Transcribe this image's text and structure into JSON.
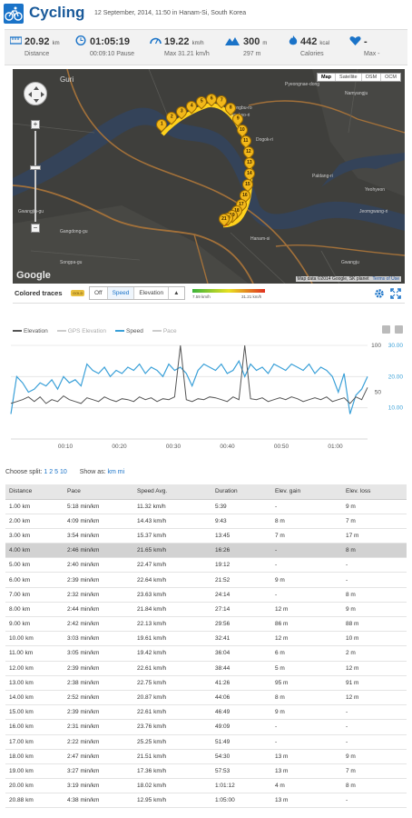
{
  "header": {
    "title": "Cycling",
    "subtitle": "12 September, 2014, 11:50 in Hanam-Si, South Korea"
  },
  "stats": {
    "distance": {
      "value": "20.92",
      "unit": "km",
      "label": "Distance"
    },
    "duration": {
      "value": "01:05:19",
      "label": "00:09:10 Pause"
    },
    "speed": {
      "value": "19.22",
      "unit": "km/h",
      "label": "Max 31.21 km/h"
    },
    "elevation": {
      "value": "300",
      "unit": "m",
      "label": "297 m"
    },
    "calories": {
      "value": "442",
      "unit": "kcal",
      "label": "Calories"
    },
    "heart": {
      "value": "-",
      "label": "Max -"
    }
  },
  "map": {
    "types": [
      "Map",
      "Satellite",
      "OSM",
      "OCM"
    ],
    "labels": [
      {
        "text": "Guri"
      },
      {
        "text": "Dongbu-ro"
      },
      {
        "text": "Deokso-ri"
      },
      {
        "text": "Pyeongnae-dong"
      },
      {
        "text": "Dogok-ri"
      },
      {
        "text": "Paldang-ri"
      },
      {
        "text": "Gwangjin-gu"
      },
      {
        "text": "Gangdong-gu"
      },
      {
        "text": "Namyangju"
      },
      {
        "text": "Songpa-gu"
      },
      {
        "text": "Hanam-si"
      },
      {
        "text": "Gwangju"
      },
      {
        "text": "Jeomgwang-ri"
      },
      {
        "text": "Yeohyeon"
      }
    ],
    "markers": [
      "1",
      "2",
      "3",
      "4",
      "5",
      "6",
      "7",
      "8",
      "9",
      "10",
      "11",
      "12",
      "13",
      "14",
      "15",
      "16",
      "17",
      "18",
      "19",
      "20",
      "21"
    ],
    "logo": "Google",
    "attribution": "Map data ©2014 Google, SK planet",
    "terms": "Terms of Use"
  },
  "mapcontrols": {
    "label": "Colored traces",
    "badge": "GOLD",
    "buttons": [
      "Off",
      "Speed",
      "Elevation"
    ],
    "scale_min": "7.59 km/h",
    "scale_max": "31.21 km/h"
  },
  "chart_data": {
    "type": "line",
    "legend": [
      "Elevation",
      "GPS Elevation",
      "Speed",
      "Pace"
    ],
    "x_ticks": [
      "00:10",
      "00:20",
      "00:30",
      "00:40",
      "00:50",
      "01:00"
    ],
    "y_left_ticks": [
      "100",
      "50"
    ],
    "y_right_ticks": [
      "30.00",
      "20.00",
      "10.00"
    ],
    "elevation": [
      38,
      40,
      42,
      45,
      40,
      45,
      38,
      42,
      40,
      46,
      42,
      40,
      38,
      44,
      42,
      40,
      45,
      42,
      40,
      43,
      42,
      40,
      45,
      42,
      44,
      40,
      43,
      42,
      45,
      100,
      42,
      40,
      43,
      42,
      45,
      44,
      42,
      40,
      45,
      42,
      100,
      43,
      42,
      44,
      40,
      42,
      44,
      42,
      45,
      43,
      40,
      42,
      44,
      42,
      45,
      40,
      42,
      44,
      38,
      45,
      42,
      55
    ],
    "speed": [
      8,
      20,
      18,
      15,
      16,
      18,
      17,
      19,
      16,
      20,
      18,
      19,
      17,
      24,
      22,
      21,
      23,
      20,
      22,
      21,
      23,
      22,
      24,
      21,
      23,
      22,
      20,
      24,
      22,
      23,
      21,
      17,
      22,
      24,
      23,
      22,
      24,
      21,
      22,
      25,
      20,
      24,
      22,
      23,
      21,
      24,
      23,
      22,
      24,
      23,
      22,
      24,
      21,
      23,
      22,
      20,
      15,
      21,
      8,
      14,
      16,
      20
    ]
  },
  "splits": {
    "choose_label": "Choose split:",
    "options": [
      "1",
      "2",
      "5",
      "10"
    ],
    "show_label": "Show as:",
    "units": [
      "km",
      "mi"
    ]
  },
  "table": {
    "headers": [
      "Distance",
      "Pace",
      "Speed Avg.",
      "Duration",
      "Elev. gain",
      "Elev. loss"
    ],
    "rows": [
      [
        "1.00 km",
        "5:18 min/km",
        "11.32 km/h",
        "5:39",
        "-",
        "9 m"
      ],
      [
        "2.00 km",
        "4:09 min/km",
        "14.43 km/h",
        "9:43",
        "8 m",
        "7 m"
      ],
      [
        "3.00 km",
        "3:54 min/km",
        "15.37 km/h",
        "13:45",
        "7 m",
        "17 m"
      ],
      [
        "4.00 km",
        "2:46 min/km",
        "21.65 km/h",
        "16:26",
        "-",
        "8 m"
      ],
      [
        "5.00 km",
        "2:40 min/km",
        "22.47 km/h",
        "19:12",
        "-",
        "-"
      ],
      [
        "6.00 km",
        "2:39 min/km",
        "22.64 km/h",
        "21:52",
        "9 m",
        "-"
      ],
      [
        "7.00 km",
        "2:32 min/km",
        "23.63 km/h",
        "24:14",
        "-",
        "8 m"
      ],
      [
        "8.00 km",
        "2:44 min/km",
        "21.84 km/h",
        "27:14",
        "12 m",
        "9 m"
      ],
      [
        "9.00 km",
        "2:42 min/km",
        "22.13 km/h",
        "29:56",
        "86 m",
        "88 m"
      ],
      [
        "10.00 km",
        "3:03 min/km",
        "19.61 km/h",
        "32:41",
        "12 m",
        "10 m"
      ],
      [
        "11.00 km",
        "3:05 min/km",
        "19.42 km/h",
        "36:04",
        "6 m",
        "2 m"
      ],
      [
        "12.00 km",
        "2:39 min/km",
        "22.61 km/h",
        "38:44",
        "5 m",
        "12 m"
      ],
      [
        "13.00 km",
        "2:38 min/km",
        "22.75 km/h",
        "41:26",
        "95 m",
        "91 m"
      ],
      [
        "14.00 km",
        "2:52 min/km",
        "20.87 km/h",
        "44:06",
        "8 m",
        "12 m"
      ],
      [
        "15.00 km",
        "2:39 min/km",
        "22.61 km/h",
        "46:49",
        "9 m",
        "-"
      ],
      [
        "16.00 km",
        "2:31 min/km",
        "23.76 km/h",
        "49:09",
        "-",
        "-"
      ],
      [
        "17.00 km",
        "2:22 min/km",
        "25.25 km/h",
        "51:49",
        "-",
        "-"
      ],
      [
        "18.00 km",
        "2:47 min/km",
        "21.51 km/h",
        "54:30",
        "13 m",
        "9 m"
      ],
      [
        "19.00 km",
        "3:27 min/km",
        "17.36 km/h",
        "57:53",
        "13 m",
        "7 m"
      ],
      [
        "20.00 km",
        "3:19 min/km",
        "18.02 km/h",
        "1:01:12",
        "4 m",
        "8 m"
      ],
      [
        "20.88 km",
        "4:38 min/km",
        "12.95 km/h",
        "1:05:00",
        "13 m",
        "-"
      ]
    ]
  }
}
